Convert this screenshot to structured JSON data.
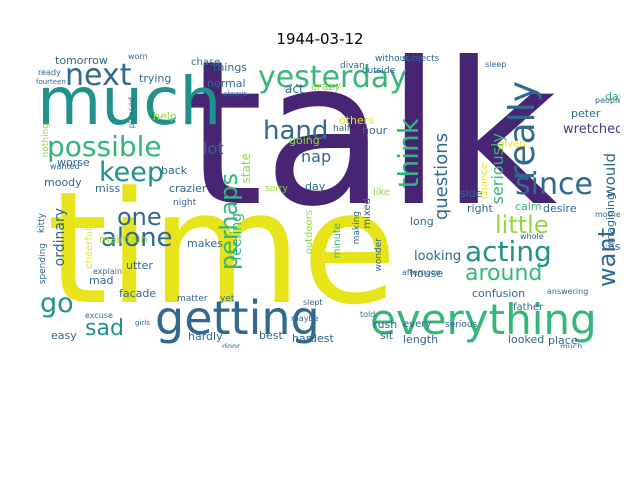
{
  "title": "1944-03-12",
  "palette": {
    "yellow": "#e7e419",
    "lime": "#90d743",
    "green": "#35b779",
    "teal": "#21918c",
    "blue": "#31688e",
    "indigo": "#443983",
    "purple": "#440154",
    "darkpurple": "#482475"
  },
  "words": [
    {
      "text": "talk",
      "color": "#482475"
    },
    {
      "text": "time",
      "color": "#e7e419"
    },
    {
      "text": "much",
      "color": "#21918c"
    },
    {
      "text": "getting",
      "color": "#31688e"
    },
    {
      "text": "everything",
      "color": "#35b779"
    },
    {
      "text": "yesterday",
      "color": "#35b779"
    },
    {
      "text": "next",
      "color": "#31688e"
    },
    {
      "text": "possible",
      "color": "#35b779"
    },
    {
      "text": "hand",
      "color": "#31688e"
    },
    {
      "text": "really",
      "color": "#31688e"
    },
    {
      "text": "keep",
      "color": "#21918c"
    },
    {
      "text": "since",
      "color": "#31688e"
    },
    {
      "text": "think",
      "color": "#35b779"
    },
    {
      "text": "acting",
      "color": "#21918c"
    },
    {
      "text": "alone",
      "color": "#31688e"
    },
    {
      "text": "one",
      "color": "#31688e"
    },
    {
      "text": "perhaps",
      "color": "#35b779"
    },
    {
      "text": "little",
      "color": "#90d743"
    },
    {
      "text": "around",
      "color": "#35b779"
    },
    {
      "text": "want",
      "color": "#31688e"
    },
    {
      "text": "go",
      "color": "#21918c"
    },
    {
      "text": "sad",
      "color": "#21918c"
    },
    {
      "text": "questions",
      "color": "#31688e"
    },
    {
      "text": "seriously",
      "color": "#35b779"
    },
    {
      "text": "would",
      "color": "#31688e"
    },
    {
      "text": "wretched",
      "color": "#443983"
    },
    {
      "text": "peter",
      "color": "#31688e"
    },
    {
      "text": "days",
      "color": "#35b779"
    },
    {
      "text": "tomorrow",
      "color": "#31688e"
    },
    {
      "text": "chase",
      "color": "#31688e"
    },
    {
      "text": "trying",
      "color": "#31688e"
    },
    {
      "text": "things",
      "color": "#31688e"
    },
    {
      "text": "act",
      "color": "#31688e"
    },
    {
      "text": "normal",
      "color": "#31688e"
    },
    {
      "text": "help",
      "color": "#90d743"
    },
    {
      "text": "crazy",
      "color": "#90d743"
    },
    {
      "text": "lot",
      "color": "#31688e"
    },
    {
      "text": "nap",
      "color": "#31688e"
    },
    {
      "text": "state",
      "color": "#90d743"
    },
    {
      "text": "going",
      "color": "#90d743"
    },
    {
      "text": "others",
      "color": "#e7e419"
    },
    {
      "text": "worse",
      "color": "#31688e"
    },
    {
      "text": "moody",
      "color": "#31688e"
    },
    {
      "text": "miss",
      "color": "#31688e"
    },
    {
      "text": "crazier",
      "color": "#31688e"
    },
    {
      "text": "back",
      "color": "#31688e"
    },
    {
      "text": "feeling",
      "color": "#35b779"
    },
    {
      "text": "hour",
      "color": "#31688e"
    },
    {
      "text": "day",
      "color": "#31688e"
    },
    {
      "text": "sorry",
      "color": "#90d743"
    },
    {
      "text": "right",
      "color": "#31688e"
    },
    {
      "text": "side",
      "color": "#31688e"
    },
    {
      "text": "like",
      "color": "#90d743"
    },
    {
      "text": "calm",
      "color": "#35b779"
    },
    {
      "text": "desire",
      "color": "#31688e"
    },
    {
      "text": "ask",
      "color": "#31688e"
    },
    {
      "text": "given",
      "color": "#e7e419"
    },
    {
      "text": "long",
      "color": "#31688e"
    },
    {
      "text": "arm",
      "color": "#31688e"
    },
    {
      "text": "imagining",
      "color": "#31688e"
    },
    {
      "text": "ordinary",
      "color": "#31688e"
    },
    {
      "text": "spending",
      "color": "#31688e"
    },
    {
      "text": "kitty",
      "color": "#31688e"
    },
    {
      "text": "cheerful",
      "color": "#e7e419"
    },
    {
      "text": "maintain",
      "color": "#90d743"
    },
    {
      "text": "makes",
      "color": "#31688e"
    },
    {
      "text": "utter",
      "color": "#31688e"
    },
    {
      "text": "outdoors",
      "color": "#90d743"
    },
    {
      "text": "minute",
      "color": "#35b779"
    },
    {
      "text": "making",
      "color": "#31688e"
    },
    {
      "text": "mixed",
      "color": "#31688e"
    },
    {
      "text": "wonder",
      "color": "#31688e"
    },
    {
      "text": "looking",
      "color": "#31688e"
    },
    {
      "text": "house",
      "color": "#31688e"
    },
    {
      "text": "confusion",
      "color": "#31688e"
    },
    {
      "text": "father",
      "color": "#31688e"
    },
    {
      "text": "mad",
      "color": "#31688e"
    },
    {
      "text": "facade",
      "color": "#31688e"
    },
    {
      "text": "matter",
      "color": "#31688e"
    },
    {
      "text": "easy",
      "color": "#31688e"
    },
    {
      "text": "hardly",
      "color": "#31688e"
    },
    {
      "text": "best",
      "color": "#31688e"
    },
    {
      "text": "hardest",
      "color": "#31688e"
    },
    {
      "text": "sit",
      "color": "#31688e"
    },
    {
      "text": "rush",
      "color": "#31688e"
    },
    {
      "text": "every",
      "color": "#31688e"
    },
    {
      "text": "length",
      "color": "#31688e"
    },
    {
      "text": "looked",
      "color": "#31688e"
    },
    {
      "text": "place",
      "color": "#31688e"
    },
    {
      "text": "nothing",
      "color": "#90d743"
    },
    {
      "text": "wanted",
      "color": "#31688e"
    },
    {
      "text": "night",
      "color": "#31688e"
    },
    {
      "text": "half",
      "color": "#31688e"
    },
    {
      "text": "divan",
      "color": "#31688e"
    },
    {
      "text": "outside",
      "color": "#31688e"
    },
    {
      "text": "without",
      "color": "#31688e"
    },
    {
      "text": "subjects",
      "color": "#31688e"
    },
    {
      "text": "sleep",
      "color": "#31688e"
    },
    {
      "text": "afternoon",
      "color": "#31688e"
    },
    {
      "text": "chance",
      "color": "#e7e419"
    },
    {
      "text": "answering",
      "color": "#31688e"
    },
    {
      "text": "whole",
      "color": "#31688e"
    },
    {
      "text": "explain",
      "color": "#31688e"
    },
    {
      "text": "yet",
      "color": "#31688e"
    },
    {
      "text": "slept",
      "color": "#31688e"
    },
    {
      "text": "told",
      "color": "#31688e"
    },
    {
      "text": "serious",
      "color": "#31688e"
    },
    {
      "text": "maybe",
      "color": "#31688e"
    },
    {
      "text": "door",
      "color": "#31688e"
    },
    {
      "text": "mother",
      "color": "#31688e"
    },
    {
      "text": "worn",
      "color": "#31688e"
    },
    {
      "text": "ready",
      "color": "#31688e"
    },
    {
      "text": "fourteen",
      "color": "#31688e"
    },
    {
      "text": "pleased",
      "color": "#31688e"
    },
    {
      "text": "always",
      "color": "#31688e"
    },
    {
      "text": "people",
      "color": "#31688e"
    },
    {
      "text": "excuse",
      "color": "#31688e"
    },
    {
      "text": "girls",
      "color": "#31688e"
    },
    {
      "text": "much",
      "color": "#31688e"
    }
  ]
}
